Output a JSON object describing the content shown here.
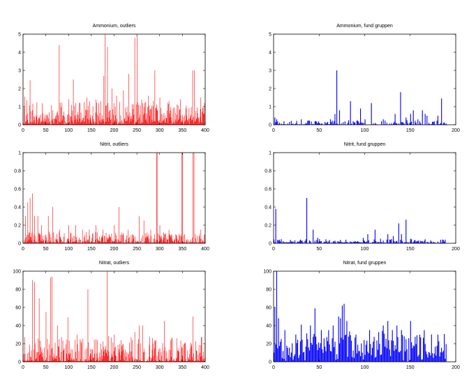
{
  "chart_data": [
    {
      "type": "bar",
      "title": "Ammonium, outliers",
      "color": "#ff0000",
      "xlim": [
        0,
        400
      ],
      "ylim": [
        0,
        5
      ],
      "xticks": [
        0,
        50,
        100,
        150,
        200,
        250,
        300,
        350,
        400
      ],
      "yticks": [
        0,
        1,
        2,
        3,
        4,
        5
      ],
      "n_points": 400,
      "noise": {
        "seed": 11,
        "base": 0.15,
        "spread": 1.2,
        "exp": 2.2
      },
      "peaks": [
        [
          3,
          1.55
        ],
        [
          8,
          1.35
        ],
        [
          15,
          2.45
        ],
        [
          20,
          0.8
        ],
        [
          35,
          0.35
        ],
        [
          55,
          0.35
        ],
        [
          70,
          0.35
        ],
        [
          79,
          4.4
        ],
        [
          100,
          1.4
        ],
        [
          110,
          2.5
        ],
        [
          125,
          1.2
        ],
        [
          140,
          1.5
        ],
        [
          160,
          1.4
        ],
        [
          170,
          1.3
        ],
        [
          177,
          2.7
        ],
        [
          180,
          5.0
        ],
        [
          185,
          4.3
        ],
        [
          195,
          2.0
        ],
        [
          205,
          1.6
        ],
        [
          220,
          1.9
        ],
        [
          232,
          2.8
        ],
        [
          245,
          4.8
        ],
        [
          250,
          4.9
        ],
        [
          260,
          1.4
        ],
        [
          275,
          1.6
        ],
        [
          289,
          3.0
        ],
        [
          300,
          1.5
        ],
        [
          320,
          1.3
        ],
        [
          345,
          1.4
        ],
        [
          372,
          3.0
        ],
        [
          376,
          3.0
        ],
        [
          390,
          1.5
        ],
        [
          398,
          1.2
        ]
      ]
    },
    {
      "type": "bar",
      "title": "Ammonium, fund gruppen",
      "color": "#0000ff",
      "xlim": [
        0,
        200
      ],
      "ylim": [
        0,
        5
      ],
      "xticks": [
        0,
        50,
        100,
        150,
        200
      ],
      "yticks": [
        0,
        1,
        2,
        3,
        4,
        5
      ],
      "n_points": 190,
      "noise": {
        "seed": 23,
        "base": 0.02,
        "spread": 0.25,
        "exp": 3.0
      },
      "peaks": [
        [
          1,
          0.4
        ],
        [
          3,
          0.3
        ],
        [
          30,
          0.3
        ],
        [
          62,
          0.3
        ],
        [
          67,
          0.6
        ],
        [
          69,
          3.0
        ],
        [
          72,
          0.8
        ],
        [
          84,
          1.3
        ],
        [
          87,
          0.2
        ],
        [
          95,
          0.9
        ],
        [
          100,
          0.3
        ],
        [
          107,
          1.2
        ],
        [
          120,
          0.3
        ],
        [
          133,
          0.6
        ],
        [
          139,
          1.8
        ],
        [
          145,
          0.4
        ],
        [
          150,
          0.6
        ],
        [
          153,
          0.8
        ],
        [
          158,
          0.3
        ],
        [
          163,
          0.8
        ],
        [
          166,
          0.6
        ],
        [
          168,
          0.5
        ],
        [
          176,
          0.2
        ],
        [
          180,
          0.5
        ],
        [
          184,
          1.45
        ]
      ]
    },
    {
      "type": "bar",
      "title": "Nitrit, outliers",
      "color": "#ff0000",
      "xlim": [
        0,
        400
      ],
      "ylim": [
        0,
        1
      ],
      "xticks": [
        0,
        50,
        100,
        150,
        200,
        250,
        300,
        350,
        400
      ],
      "yticks": [
        0,
        0.2,
        0.4,
        0.6,
        0.8,
        1
      ],
      "n_points": 400,
      "noise": {
        "seed": 37,
        "base": 0.01,
        "spread": 0.12,
        "exp": 2.5
      },
      "peaks": [
        [
          5,
          0.3
        ],
        [
          10,
          0.45
        ],
        [
          15,
          0.5
        ],
        [
          20,
          0.55
        ],
        [
          25,
          0.3
        ],
        [
          32,
          0.3
        ],
        [
          40,
          0.2
        ],
        [
          55,
          0.3
        ],
        [
          65,
          0.4
        ],
        [
          80,
          0.15
        ],
        [
          100,
          0.2
        ],
        [
          115,
          0.2
        ],
        [
          130,
          0.15
        ],
        [
          145,
          0.15
        ],
        [
          160,
          0.2
        ],
        [
          175,
          0.15
        ],
        [
          200,
          0.2
        ],
        [
          210,
          0.4
        ],
        [
          230,
          0.15
        ],
        [
          255,
          0.3
        ],
        [
          265,
          0.25
        ],
        [
          280,
          0.15
        ],
        [
          293,
          1.0
        ],
        [
          294,
          1.0
        ],
        [
          300,
          0.2
        ],
        [
          320,
          0.15
        ],
        [
          335,
          0.1
        ],
        [
          348,
          1.0
        ],
        [
          350,
          1.0
        ],
        [
          373,
          1.0
        ],
        [
          375,
          1.0
        ],
        [
          390,
          0.15
        ]
      ]
    },
    {
      "type": "bar",
      "title": "Nitrit, fund gruppen",
      "color": "#0000ff",
      "xlim": [
        0,
        200
      ],
      "ylim": [
        0,
        1
      ],
      "xticks": [
        0,
        50,
        100,
        150,
        200
      ],
      "yticks": [
        0,
        0.2,
        0.4,
        0.6,
        0.8,
        1
      ],
      "n_points": 190,
      "noise": {
        "seed": 41,
        "base": 0.01,
        "spread": 0.04,
        "exp": 2.0
      },
      "peaks": [
        [
          2,
          0.38
        ],
        [
          36,
          0.5
        ],
        [
          43,
          0.15
        ],
        [
          48,
          0.06
        ],
        [
          98,
          0.06
        ],
        [
          103,
          0.1
        ],
        [
          111,
          0.15
        ],
        [
          117,
          0.05
        ],
        [
          125,
          0.1
        ],
        [
          131,
          0.08
        ],
        [
          137,
          0.22
        ],
        [
          140,
          0.1
        ],
        [
          145,
          0.26
        ],
        [
          150,
          0.05
        ]
      ]
    },
    {
      "type": "bar",
      "title": "Nitrat, outliers",
      "color": "#ff0000",
      "xlim": [
        0,
        400
      ],
      "ylim": [
        0,
        100
      ],
      "xticks": [
        0,
        50,
        100,
        150,
        200,
        250,
        300,
        350,
        400
      ],
      "yticks": [
        0,
        20,
        40,
        60,
        80,
        100
      ],
      "n_points": 400,
      "noise": {
        "seed": 53,
        "base": 1.0,
        "spread": 28.0,
        "exp": 2.6
      },
      "peaks": [
        [
          3,
          27
        ],
        [
          20,
          90
        ],
        [
          25,
          88
        ],
        [
          35,
          70
        ],
        [
          50,
          55
        ],
        [
          60,
          93
        ],
        [
          63,
          94
        ],
        [
          75,
          40
        ],
        [
          90,
          15
        ],
        [
          98,
          49
        ],
        [
          118,
          30
        ],
        [
          125,
          25
        ],
        [
          142,
          80
        ],
        [
          160,
          25
        ],
        [
          170,
          20
        ],
        [
          184,
          100
        ],
        [
          200,
          30
        ],
        [
          220,
          20
        ],
        [
          245,
          33
        ],
        [
          255,
          40
        ],
        [
          262,
          40
        ],
        [
          285,
          20
        ],
        [
          300,
          15
        ],
        [
          310,
          45
        ],
        [
          340,
          15
        ],
        [
          355,
          20
        ],
        [
          373,
          50
        ],
        [
          388,
          10
        ]
      ]
    },
    {
      "type": "bar",
      "title": "Nitrat, fund gruppen",
      "color": "#0000ff",
      "xlim": [
        0,
        200
      ],
      "ylim": [
        0,
        100
      ],
      "xticks": [
        0,
        50,
        100,
        150,
        200
      ],
      "yticks": [
        0,
        20,
        40,
        60,
        80,
        100
      ],
      "n_points": 190,
      "noise": {
        "seed": 67,
        "base": 8.0,
        "spread": 28.0,
        "exp": 1.2
      },
      "peaks": [
        [
          1,
          60
        ],
        [
          3,
          100
        ],
        [
          5,
          48
        ],
        [
          8,
          25
        ],
        [
          12,
          35
        ],
        [
          24,
          30
        ],
        [
          30,
          41
        ],
        [
          40,
          40
        ],
        [
          45,
          59
        ],
        [
          52,
          35
        ],
        [
          60,
          35
        ],
        [
          65,
          40
        ],
        [
          71,
          50
        ],
        [
          73,
          48
        ],
        [
          75,
          62
        ],
        [
          77,
          64
        ],
        [
          80,
          45
        ],
        [
          90,
          30
        ],
        [
          105,
          35
        ],
        [
          120,
          40
        ],
        [
          125,
          45
        ],
        [
          130,
          35
        ],
        [
          135,
          40
        ],
        [
          140,
          35
        ],
        [
          145,
          25
        ],
        [
          150,
          45
        ],
        [
          160,
          30
        ],
        [
          165,
          35
        ],
        [
          180,
          30
        ],
        [
          190,
          48
        ]
      ]
    }
  ]
}
